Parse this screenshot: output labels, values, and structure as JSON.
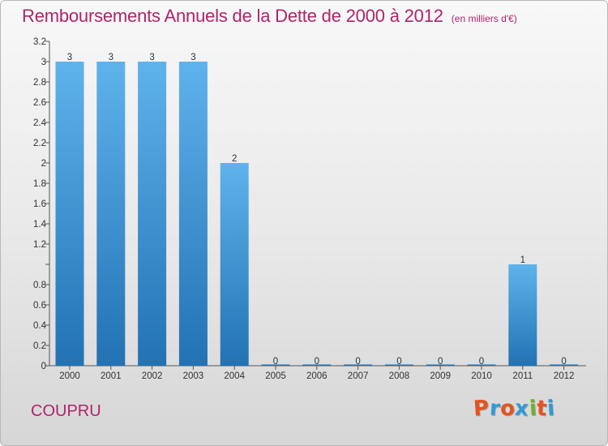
{
  "header": {
    "title": "Remboursements Annuels de la Dette de 2000 à 2012",
    "subtitle": "(en milliers d'€)"
  },
  "footer": {
    "place": "COUPRU",
    "logo_text": "Proxiti"
  },
  "colors": {
    "title": "#b0246a",
    "bar_top": "#5fb3ec",
    "bar_bottom": "#2272b4",
    "logo_letters": [
      "#e5521f",
      "#2f9bd6",
      "#e5521f",
      "#2f9bd6",
      "#6cb32e",
      "#e5521f",
      "#2f9bd6"
    ]
  },
  "chart_data": {
    "type": "bar",
    "title": "Remboursements Annuels de la Dette de 2000 à 2012",
    "subtitle": "(en milliers d'€)",
    "categories": [
      "2000",
      "2001",
      "2002",
      "2003",
      "2004",
      "2005",
      "2006",
      "2007",
      "2008",
      "2009",
      "2010",
      "2011",
      "2012"
    ],
    "values": [
      3,
      3,
      3,
      3,
      2,
      0,
      0,
      0,
      0,
      0,
      0,
      1,
      0
    ],
    "value_labels": [
      "3",
      "3",
      "3",
      "3",
      "2",
      "0",
      "0",
      "0",
      "0",
      "0",
      "0",
      "1",
      "0"
    ],
    "y_ticks": [
      "0",
      "0.2",
      "0.4",
      "0.6",
      "0.8",
      "",
      "1.2",
      "1.4",
      "1.6",
      "1.8",
      "2",
      "2.2",
      "2.4",
      "2.6",
      "2.8",
      "3",
      "3.2"
    ],
    "ylim": [
      0,
      3.2
    ],
    "grid": false,
    "legend": "none"
  }
}
